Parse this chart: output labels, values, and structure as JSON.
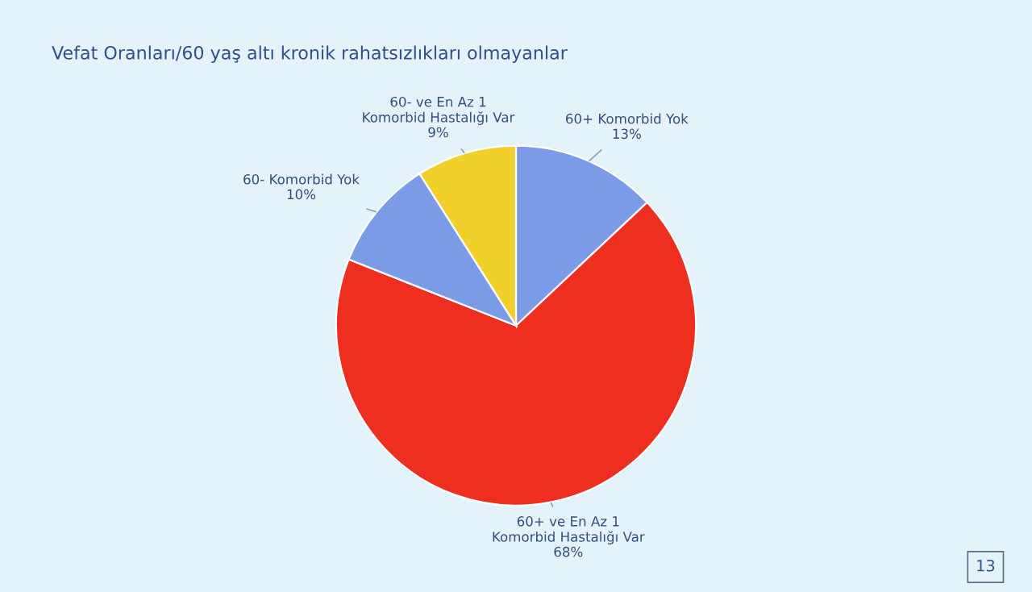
{
  "chart_data": {
    "type": "pie",
    "title": "Vefat Oranları/60 yaş altı kronik rahatsızlıkları olmayanlar",
    "categories": [
      "60+ Komorbid Yok",
      "60+ ve En Az 1\nKomorbid Hastalığı Var",
      "60- Komorbid Yok",
      "60- ve En Az 1\nKomorbid Hastalığı Var"
    ],
    "values": [
      13,
      68,
      10,
      9
    ],
    "value_labels": [
      "13%",
      "68%",
      "10%",
      "9%"
    ],
    "colors": [
      "#7b9be6",
      "#ee2e1e",
      "#7b9be6",
      "#f2d02c"
    ],
    "annotations": [
      "13"
    ]
  }
}
